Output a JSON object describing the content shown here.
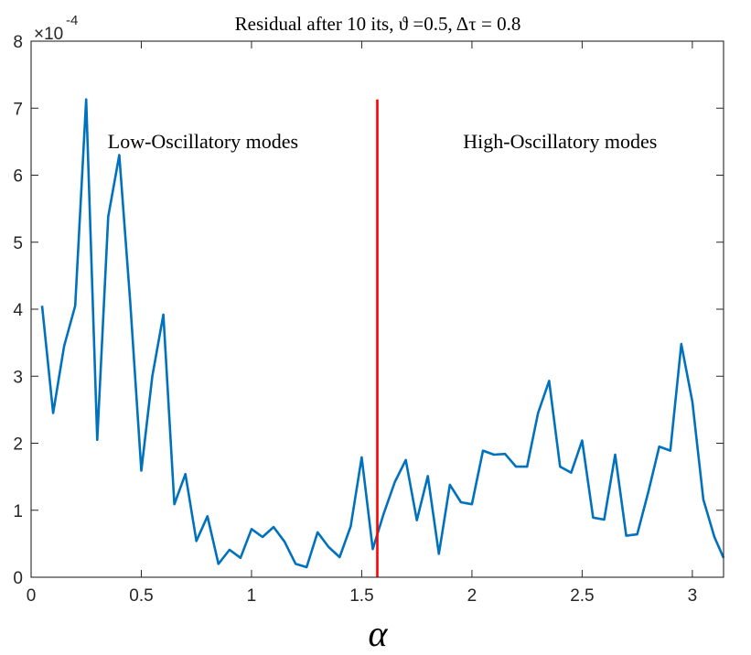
{
  "chart_data": {
    "type": "line",
    "title": "Residual after 10 its, ϑ =0.5, Δτ = 0.8",
    "xlabel": "α",
    "ylabel": "",
    "y_scale_label": "×10",
    "y_scale_exponent": "-4",
    "xlim": [
      0,
      3.1416
    ],
    "ylim": [
      0,
      8
    ],
    "x_ticks": [
      0,
      0.5,
      1,
      1.5,
      2,
      2.5,
      3
    ],
    "x_tick_labels": [
      "0",
      "0.5",
      "1",
      "1.5",
      "2",
      "2.5",
      "3"
    ],
    "y_ticks": [
      0,
      1,
      2,
      3,
      4,
      5,
      6,
      7,
      8
    ],
    "y_tick_labels": [
      "0",
      "1",
      "2",
      "3",
      "4",
      "5",
      "6",
      "7",
      "8"
    ],
    "grid": false,
    "series": [
      {
        "name": "residual",
        "color": "#0072BD",
        "x": [
          0.05,
          0.1,
          0.15,
          0.2,
          0.25,
          0.3,
          0.35,
          0.4,
          0.45,
          0.5,
          0.55,
          0.6,
          0.65,
          0.7,
          0.75,
          0.8,
          0.85,
          0.9,
          0.95,
          1.0,
          1.05,
          1.1,
          1.15,
          1.2,
          1.25,
          1.3,
          1.35,
          1.4,
          1.45,
          1.5,
          1.55,
          1.6,
          1.65,
          1.7,
          1.75,
          1.8,
          1.85,
          1.9,
          1.95,
          2.0,
          2.05,
          2.1,
          2.15,
          2.2,
          2.25,
          2.3,
          2.35,
          2.4,
          2.45,
          2.5,
          2.55,
          2.6,
          2.65,
          2.7,
          2.75,
          2.8,
          2.85,
          2.9,
          2.95,
          3.0,
          3.05,
          3.1,
          3.1416
        ],
        "values": [
          4.05,
          2.45,
          3.45,
          4.05,
          7.13,
          2.05,
          5.38,
          6.3,
          4.1,
          1.59,
          3.0,
          3.92,
          1.09,
          1.54,
          0.54,
          0.91,
          0.2,
          0.41,
          0.29,
          0.72,
          0.6,
          0.75,
          0.53,
          0.2,
          0.15,
          0.67,
          0.45,
          0.3,
          0.76,
          1.79,
          0.42,
          0.95,
          1.42,
          1.75,
          0.85,
          1.51,
          0.35,
          1.38,
          1.12,
          1.09,
          1.89,
          1.83,
          1.84,
          1.65,
          1.65,
          2.45,
          2.93,
          1.65,
          1.56,
          2.04,
          0.89,
          0.86,
          1.83,
          0.62,
          0.64,
          1.27,
          1.95,
          1.89,
          3.48,
          2.62,
          1.16,
          0.6,
          0.29
        ]
      }
    ],
    "vertical_line": {
      "x": 1.5708,
      "y_range": [
        0,
        7.13
      ],
      "color": "#FF0000"
    },
    "annotations": [
      {
        "text": "Low-Oscillatory modes",
        "x": 0.78,
        "y": 6.4
      },
      {
        "text": "High-Oscillatory modes",
        "x": 2.4,
        "y": 6.4
      }
    ]
  }
}
